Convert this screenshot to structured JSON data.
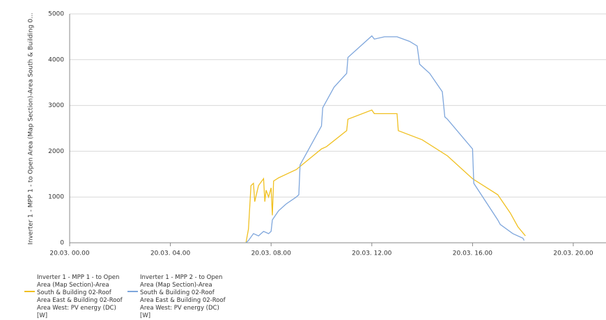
{
  "chart_data": {
    "type": "line",
    "y_label": "Inverter 1 - MPP 1 - to Open Area (Map Section)-Area South & Building 0...",
    "xlim": [
      0,
      21.3
    ],
    "xticks": [
      {
        "value": 0,
        "label": "20.03. 00.00"
      },
      {
        "value": 4,
        "label": "20.03. 04.00"
      },
      {
        "value": 8,
        "label": "20.03. 08.00"
      },
      {
        "value": 12,
        "label": "20.03. 12.00"
      },
      {
        "value": 16,
        "label": "20.03. 16.00"
      },
      {
        "value": 20,
        "label": "20.03. 20.00"
      }
    ],
    "ylim": [
      0,
      5000
    ],
    "yticks": [
      0,
      1000,
      2000,
      3000,
      4000,
      5000
    ],
    "grid": true,
    "series": [
      {
        "name": "Inverter 1 - MPP 1 - to Open Area (Map Section)-Area South & Building 02-Roof Area East & Building 02-Roof Area West: PV energy (DC)  [W]",
        "color": "#f0c020",
        "x": [
          7.0,
          7.1,
          7.2,
          7.3,
          7.35,
          7.5,
          7.7,
          7.75,
          7.8,
          7.9,
          8.0,
          8.05,
          8.1,
          8.3,
          9.0,
          10.0,
          10.2,
          11.0,
          11.05,
          12.0,
          12.1,
          13.0,
          13.05,
          14.0,
          15.0,
          16.0,
          17.0,
          17.5,
          17.8,
          18.1
        ],
        "values": [
          0,
          300,
          1250,
          1300,
          900,
          1250,
          1400,
          900,
          1150,
          1000,
          1200,
          600,
          1350,
          1420,
          1600,
          2050,
          2100,
          2450,
          2700,
          2900,
          2820,
          2820,
          2450,
          2250,
          1900,
          1400,
          1050,
          650,
          350,
          150
        ]
      },
      {
        "name": "Inverter 1 - MPP 2 - to Open Area (Map Section)-Area South & Building 02-Roof Area East & Building 02-Roof Area West: PV energy (DC)  [W]",
        "color": "#7ea6dc",
        "x": [
          7.0,
          7.1,
          7.3,
          7.5,
          7.7,
          7.9,
          8.0,
          8.05,
          8.3,
          8.6,
          9.0,
          9.1,
          9.15,
          10.0,
          10.05,
          10.5,
          11.0,
          11.05,
          12.0,
          12.1,
          12.5,
          13.0,
          13.5,
          13.8,
          13.9,
          14.3,
          14.8,
          14.9,
          15.0,
          16.0,
          16.05,
          17.0,
          17.1,
          17.6,
          18.0,
          18.05
        ],
        "values": [
          0,
          50,
          200,
          150,
          250,
          200,
          250,
          500,
          700,
          850,
          1000,
          1050,
          1700,
          2550,
          2950,
          3400,
          3700,
          4050,
          4520,
          4450,
          4500,
          4500,
          4400,
          4300,
          3900,
          3700,
          3300,
          2750,
          2700,
          2050,
          1300,
          500,
          400,
          200,
          100,
          50
        ]
      }
    ]
  }
}
